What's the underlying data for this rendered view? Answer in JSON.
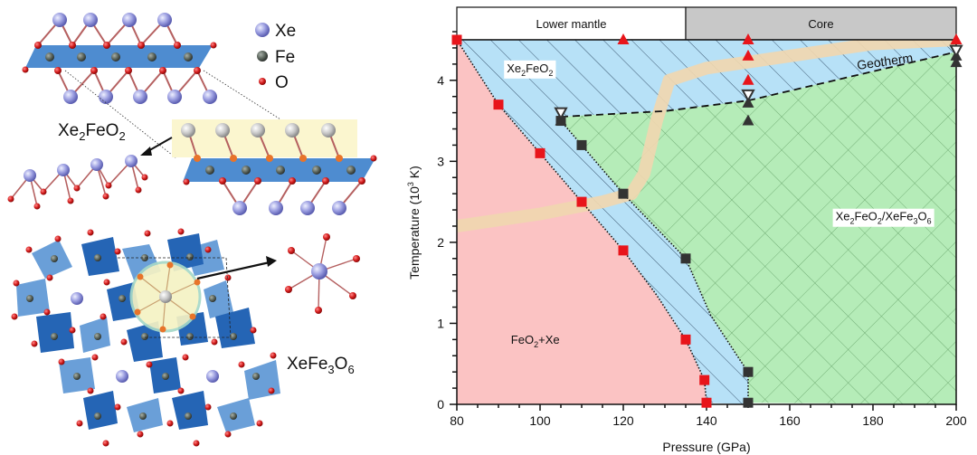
{
  "structures": {
    "legend": [
      {
        "element": "Xe",
        "color": "#8d8fd6"
      },
      {
        "element": "Fe",
        "color": "#55605a"
      },
      {
        "element": "O",
        "color": "#d21a1a"
      }
    ],
    "top_label": {
      "main": "Xe",
      "sub1": "2",
      "mid": "FeO",
      "sub2": "2"
    },
    "bottom_label": {
      "main": "XeFe",
      "sub1": "3",
      "mid": "O",
      "sub2": "6"
    }
  },
  "chart_data": {
    "type": "scatter",
    "title": "",
    "xlabel": "Pressure (GPa)",
    "ylabel_main": "Temperature (10",
    "ylabel_sup": "3",
    "ylabel_end": " K)",
    "xlim": [
      80,
      200
    ],
    "ylim": [
      0,
      4.5
    ],
    "xticks": [
      80,
      100,
      120,
      140,
      160,
      180,
      200
    ],
    "yticks": [
      0,
      1,
      2,
      3,
      4
    ],
    "x_minor_step": 5,
    "y_minor_step": 0.2,
    "grid": false,
    "header_bands": [
      {
        "label": "Lower mantle",
        "from": 80,
        "to": 135,
        "color": "#ffffff"
      },
      {
        "label": "Core",
        "from": 135,
        "to": 200,
        "color": "#c8c8c8"
      }
    ],
    "regions": [
      {
        "name": "FeO2+Xe",
        "label_parts": [
          "FeO",
          "2",
          "+Xe"
        ],
        "color": "#fbc3c3",
        "label_at": [
          93,
          0.75
        ]
      },
      {
        "name": "Xe2FeO2",
        "label_parts": [
          "Xe",
          "2",
          "FeO",
          "2"
        ],
        "color": "#b7e1f7",
        "label_at": [
          92,
          4.1
        ]
      },
      {
        "name": "Xe2FeO2/XeFe3O6",
        "label_parts": [
          "Xe",
          "2",
          "FeO",
          "2",
          "/XeFe",
          "3",
          "O",
          "6"
        ],
        "color": "#b5ecb8",
        "label_at": [
          171,
          2.27
        ]
      }
    ],
    "boundary_red": [
      [
        80,
        4.5
      ],
      [
        90,
        3.7
      ],
      [
        100,
        3.1
      ],
      [
        110,
        2.5
      ],
      [
        120,
        1.9
      ],
      [
        128,
        1.35
      ],
      [
        135,
        0.8
      ],
      [
        139.5,
        0.3
      ],
      [
        140,
        0.02
      ]
    ],
    "boundary_black": [
      [
        105,
        3.5
      ],
      [
        110,
        3.2
      ],
      [
        120,
        2.6
      ],
      [
        135,
        1.8
      ],
      [
        141,
        1.1
      ],
      [
        148,
        0.55
      ],
      [
        150,
        0.4
      ],
      [
        150,
        0.02
      ]
    ],
    "boundary_dashed": [
      [
        105,
        3.55
      ],
      [
        130,
        3.62
      ],
      [
        150,
        3.75
      ],
      [
        175,
        4.05
      ],
      [
        200,
        4.35
      ]
    ],
    "geotherm": {
      "label": "Geotherm",
      "color": "#f0d7b0",
      "points": [
        [
          80,
          2.2
        ],
        [
          100,
          2.35
        ],
        [
          115,
          2.5
        ],
        [
          122,
          2.6
        ],
        [
          125,
          2.85
        ],
        [
          128,
          3.5
        ],
        [
          131,
          4.0
        ],
        [
          140,
          4.15
        ],
        [
          160,
          4.3
        ],
        [
          180,
          4.45
        ],
        [
          200,
          4.5
        ]
      ]
    },
    "series": [
      {
        "name": "red-squares",
        "marker": "square",
        "color": "#e8151b",
        "points": [
          [
            80,
            4.5
          ],
          [
            90,
            3.7
          ],
          [
            100,
            3.1
          ],
          [
            110,
            2.5
          ],
          [
            120,
            1.9
          ],
          [
            135,
            0.8
          ],
          [
            139.5,
            0.3
          ],
          [
            140,
            0.02
          ]
        ]
      },
      {
        "name": "black-squares",
        "marker": "square",
        "color": "#333333",
        "points": [
          [
            105,
            3.5
          ],
          [
            110,
            3.2
          ],
          [
            120,
            2.6
          ],
          [
            135,
            1.8
          ],
          [
            150,
            0.4
          ],
          [
            150,
            0.02
          ]
        ]
      },
      {
        "name": "red-triangles",
        "marker": "triangle-up",
        "color": "#e8151b",
        "points": [
          [
            120,
            4.5
          ],
          [
            150,
            4.5
          ],
          [
            150,
            4.3
          ],
          [
            150,
            4.0
          ],
          [
            200,
            4.5
          ]
        ]
      },
      {
        "name": "black-triangles",
        "marker": "triangle-up",
        "color": "#333333",
        "points": [
          [
            105,
            3.5
          ],
          [
            150,
            3.72
          ],
          [
            150,
            3.5
          ],
          [
            200,
            4.3
          ],
          [
            200,
            4.22
          ]
        ]
      },
      {
        "name": "black-open-triangles-down",
        "marker": "triangle-down-open",
        "color": "#333333",
        "points": [
          [
            105,
            3.6
          ],
          [
            150,
            3.82
          ],
          [
            200,
            4.37
          ]
        ]
      }
    ]
  }
}
